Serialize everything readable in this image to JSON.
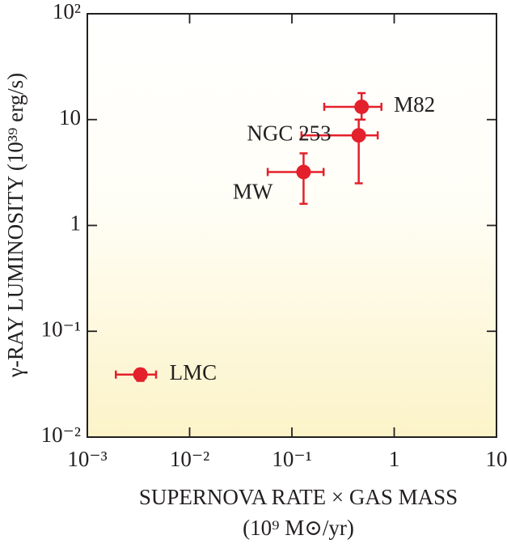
{
  "chart_data": {
    "type": "scatter",
    "x_label": "SUPERNOVA RATE × GAS MASS",
    "x_label_units": "(10⁹ M⊙/yr)",
    "y_label": "γ-RAY LUMINOSITY (10³⁹ erg/s)",
    "x_scale": "log",
    "y_scale": "log",
    "xlim": [
      0.001,
      10
    ],
    "ylim": [
      0.01,
      100
    ],
    "xticks": [
      {
        "value": 0.001,
        "label": "10⁻³"
      },
      {
        "value": 0.01,
        "label": "10⁻²"
      },
      {
        "value": 0.1,
        "label": "10⁻¹"
      },
      1,
      10
    ],
    "yticks": [
      {
        "value": 0.01,
        "label": "10⁻²"
      },
      {
        "value": 0.1,
        "label": "10⁻¹"
      },
      1,
      10,
      {
        "value": 100,
        "label": "10²"
      }
    ],
    "color": "#e3202b",
    "points": {
      "labels": [
        "LMC",
        "MW",
        "NGC 253",
        "M82"
      ],
      "x": [
        0.0033,
        0.13,
        0.45,
        0.48
      ],
      "y": [
        0.039,
        3.2,
        7.1,
        13.2
      ],
      "x_low": [
        0.0019,
        0.058,
        0.124,
        0.207
      ],
      "x_high": [
        0.0047,
        0.204,
        0.69,
        0.75
      ],
      "y_low": [
        0.034,
        1.6,
        2.5,
        10
      ],
      "y_high": [
        0.044,
        4.8,
        10,
        17.8
      ]
    }
  }
}
